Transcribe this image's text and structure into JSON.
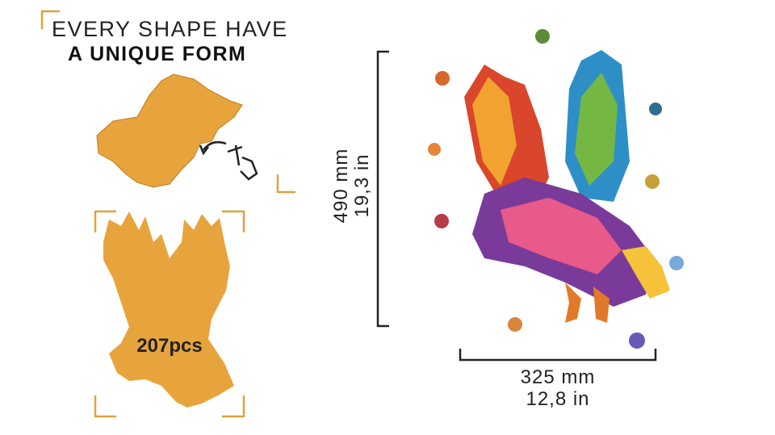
{
  "header": {
    "line1": "EVERY SHAPE HAVE",
    "line2": "A UNIQUE FORM"
  },
  "piece_count": "207pcs",
  "dimensions": {
    "height_mm": "490 mm",
    "height_in": "19,3 in",
    "width_mm": "325 mm",
    "width_in": "12,8 in"
  }
}
